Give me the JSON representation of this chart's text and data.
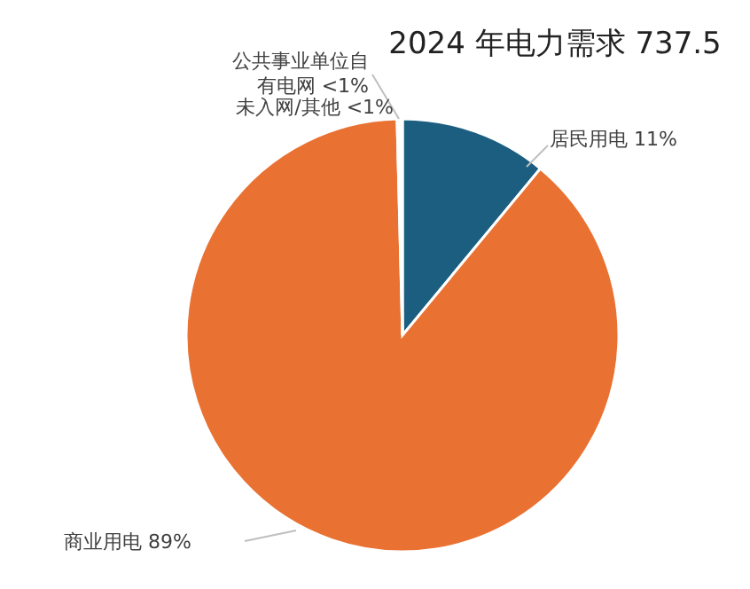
{
  "chart_data": {
    "type": "pie",
    "title": "2024 年电力需求  737.5",
    "categories": [
      "居民用电",
      "商业用电",
      "公共事业单位自有电网",
      "未入网/其他"
    ],
    "values": [
      11,
      88.6,
      0.2,
      0.2
    ],
    "value_labels": [
      "11%",
      "89%",
      "<1%",
      "<1%"
    ],
    "colors": [
      "#1b5e80",
      "#e97132",
      "#7f7f7f",
      "#a5a5a5"
    ]
  }
}
